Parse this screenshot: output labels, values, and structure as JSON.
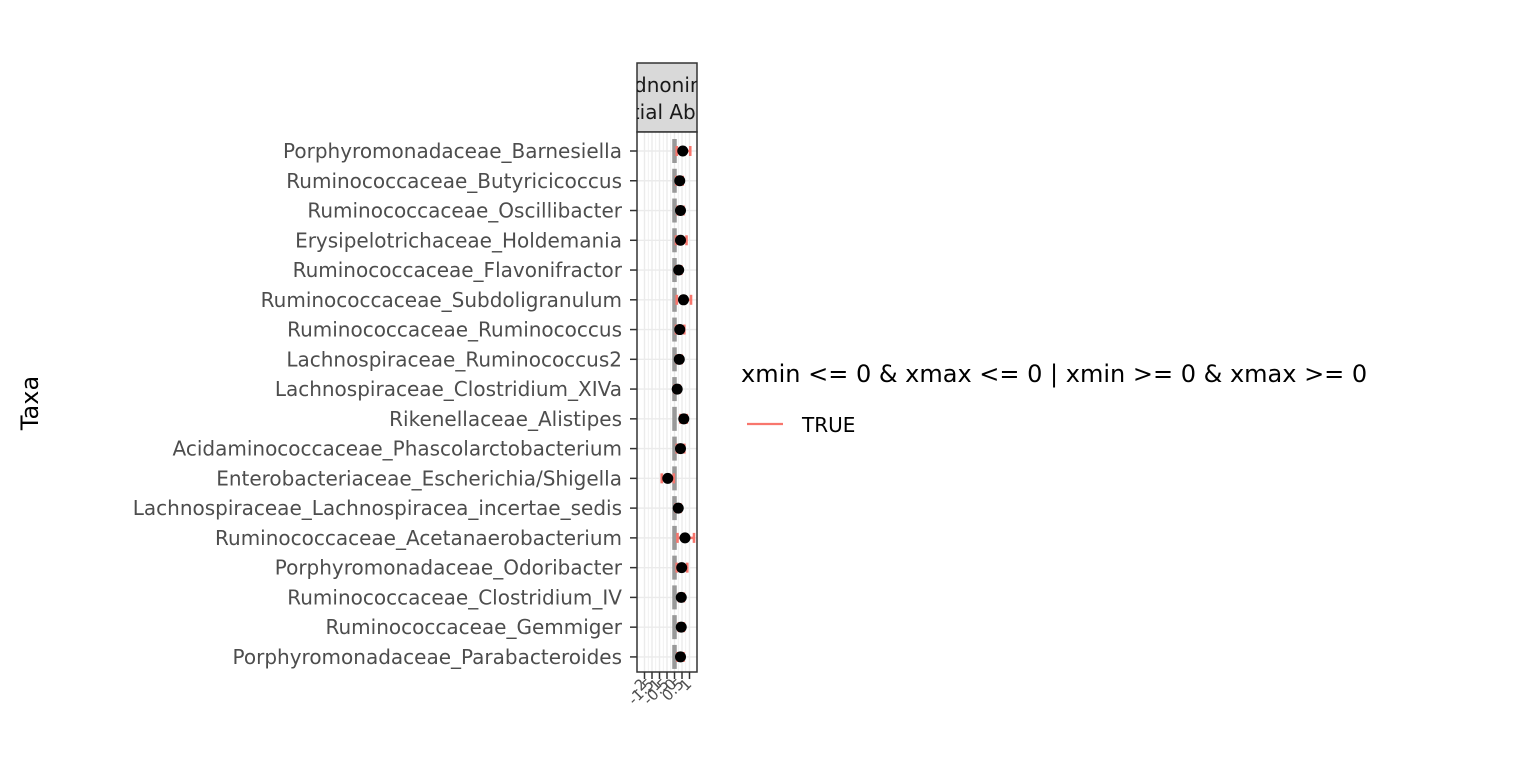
{
  "chart_data": {
    "type": "forest",
    "facet_label_lines": [
      "Badnonimic",
      "Differential Abundance"
    ],
    "ylabel": "Taxa",
    "xlabel": "",
    "xlim": [
      -2.5,
      1.5
    ],
    "x_ticks": [
      -2,
      -1.5,
      -1,
      -0.5,
      0,
      0.5,
      1
    ],
    "x_tick_labels": [
      "-2",
      "-1.5",
      "-1",
      "-0.5",
      "0",
      "0.5",
      "1"
    ],
    "reference_line_x": 0,
    "grid": true,
    "legend": {
      "title": "xmin <= 0 & xmax <= 0 | xmin >= 0 & xmax >= 0",
      "entries": [
        {
          "label": "TRUE",
          "color": "#f8766d"
        }
      ],
      "placement": "right"
    },
    "colors": {
      "errorbar": "#f8766d",
      "point": "#000000",
      "reference": "#999999",
      "panel_border": "#333333",
      "strip_fill": "#d9d9d9",
      "grid": "#ebebeb"
    },
    "taxa": [
      {
        "name": "Porphyromonadaceae_Barnesiella",
        "estimate": 0.55,
        "xmin": 0.15,
        "xmax": 1.05
      },
      {
        "name": "Ruminococcaceae_Butyricicoccus",
        "estimate": 0.35,
        "xmin": 0.12,
        "xmax": 0.55
      },
      {
        "name": "Ruminococcaceae_Oscillibacter",
        "estimate": 0.4,
        "xmin": 0.2,
        "xmax": 0.6
      },
      {
        "name": "Erysipelotrichaceae_Holdemania",
        "estimate": 0.4,
        "xmin": 0.1,
        "xmax": 0.8
      },
      {
        "name": "Ruminococcaceae_Flavonifractor",
        "estimate": 0.28,
        "xmin": 0.12,
        "xmax": 0.45
      },
      {
        "name": "Ruminococcaceae_Subdoligranulum",
        "estimate": 0.6,
        "xmin": 0.15,
        "xmax": 1.1
      },
      {
        "name": "Ruminococcaceae_Ruminococcus",
        "estimate": 0.35,
        "xmin": 0.1,
        "xmax": 0.65
      },
      {
        "name": "Lachnospiraceae_Ruminococcus2",
        "estimate": 0.32,
        "xmin": 0.15,
        "xmax": 0.48
      },
      {
        "name": "Lachnospiraceae_Clostridium_XIVa",
        "estimate": 0.18,
        "xmin": 0.02,
        "xmax": 0.32
      },
      {
        "name": "Rikenellaceae_Alistipes",
        "estimate": 0.62,
        "xmin": 0.4,
        "xmax": 0.82
      },
      {
        "name": "Acidaminococcaceae_Phascolarctobacterium",
        "estimate": 0.4,
        "xmin": 0.15,
        "xmax": 0.65
      },
      {
        "name": "Enterobacteriaceae_Escherichia/Shigella",
        "estimate": -0.45,
        "xmin": -0.85,
        "xmax": -0.05
      },
      {
        "name": "Lachnospiraceae_Lachnospiracea_incertae_sedis",
        "estimate": 0.25,
        "xmin": 0.08,
        "xmax": 0.4
      },
      {
        "name": "Ruminococcaceae_Acetanaerobacterium",
        "estimate": 0.7,
        "xmin": 0.2,
        "xmax": 1.3
      },
      {
        "name": "Porphyromonadaceae_Odoribacter",
        "estimate": 0.48,
        "xmin": 0.15,
        "xmax": 0.85
      },
      {
        "name": "Ruminococcaceae_Clostridium_IV",
        "estimate": 0.45,
        "xmin": 0.3,
        "xmax": 0.62
      },
      {
        "name": "Ruminococcaceae_Gemmiger",
        "estimate": 0.45,
        "xmin": 0.28,
        "xmax": 0.62
      },
      {
        "name": "Porphyromonadaceae_Parabacteroides",
        "estimate": 0.4,
        "xmin": 0.2,
        "xmax": 0.6
      }
    ]
  }
}
